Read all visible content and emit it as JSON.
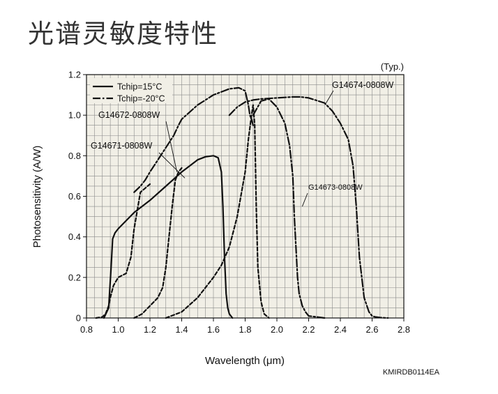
{
  "title": "光谱灵敏度特性",
  "doc_id": "KMIRDB0114EA",
  "chart_data": {
    "type": "line",
    "xlabel": "Wavelength (μm)",
    "ylabel": "Photosensitivity (A/W)",
    "note": "(Typ.)",
    "xlim": [
      0.8,
      2.8
    ],
    "ylim": [
      0,
      1.2
    ],
    "grid": true,
    "plot_background": "#f1efe6",
    "xticks": [
      "0.8",
      "1.0",
      "1.2",
      "1.4",
      "1.6",
      "1.8",
      "2.0",
      "2.2",
      "2.4",
      "2.6",
      "2.8"
    ],
    "yticks": [
      "0",
      "0.2",
      "0.4",
      "0.6",
      "0.8",
      "1.0",
      "1.2"
    ],
    "legend": {
      "position": "top-left",
      "entries": [
        {
          "label": "Tchip=15°C",
          "style": "solid"
        },
        {
          "label": "Tchip=-20°C",
          "style": "dash-dot"
        }
      ]
    },
    "series": [
      {
        "name": "G14671-0808W",
        "style": "solid",
        "x": [
          0.91,
          0.94,
          0.955,
          0.965,
          0.98,
          1.0,
          1.05,
          1.1,
          1.2,
          1.3,
          1.4,
          1.5,
          1.55,
          1.6,
          1.63,
          1.65,
          1.66,
          1.67,
          1.68,
          1.69,
          1.7,
          1.72
        ],
        "y": [
          0,
          0.05,
          0.25,
          0.39,
          0.42,
          0.44,
          0.48,
          0.52,
          0.58,
          0.65,
          0.72,
          0.78,
          0.795,
          0.8,
          0.79,
          0.72,
          0.55,
          0.3,
          0.12,
          0.05,
          0.02,
          0
        ]
      },
      {
        "name": "G14671-0808W",
        "style": "dash",
        "x": [
          0.86,
          0.9,
          0.92,
          0.94,
          0.95,
          0.97,
          1.0,
          1.05,
          1.08,
          1.1,
          1.14,
          1.2
        ],
        "y": [
          0,
          0.005,
          0.02,
          0.06,
          0.1,
          0.16,
          0.2,
          0.22,
          0.3,
          0.44,
          0.62,
          0.66
        ]
      },
      {
        "name": "G14672-0808W",
        "style": "dash-dot",
        "x": [
          1.1,
          1.14,
          1.17,
          1.2,
          1.25,
          1.3,
          1.35,
          1.38,
          1.4,
          1.5,
          1.6,
          1.7,
          1.76,
          1.8,
          1.82,
          1.83,
          1.84,
          1.85
        ],
        "y": [
          0.62,
          0.65,
          0.68,
          0.72,
          0.78,
          0.84,
          0.9,
          0.95,
          0.98,
          1.05,
          1.1,
          1.13,
          1.135,
          1.12,
          1.05,
          1.0,
          0.98,
          0.95
        ]
      },
      {
        "name": "G14672-0808W",
        "style": "dash",
        "x": [
          1.1,
          1.15,
          1.2,
          1.25,
          1.28,
          1.3,
          1.32,
          1.34,
          1.36,
          1.38,
          1.4
        ],
        "y": [
          0,
          0.02,
          0.06,
          0.1,
          0.15,
          0.25,
          0.4,
          0.55,
          0.68,
          0.72,
          0.74
        ]
      },
      {
        "name": "G14673-0808W",
        "style": "dash",
        "x": [
          1.3,
          1.4,
          1.5,
          1.6,
          1.65,
          1.7,
          1.75,
          1.8,
          1.82,
          1.84,
          1.85,
          1.86,
          1.87,
          1.88,
          1.9,
          1.92,
          1.95
        ],
        "y": [
          0,
          0.03,
          0.1,
          0.2,
          0.26,
          0.35,
          0.5,
          0.72,
          0.88,
          1.0,
          1.05,
          0.95,
          0.55,
          0.25,
          0.08,
          0.02,
          0
        ]
      },
      {
        "name": "G14673-0808W",
        "style": "dash-dot",
        "x": [
          1.85,
          1.9,
          1.95,
          2.0,
          2.05,
          2.08,
          2.1,
          2.11,
          2.12,
          2.13,
          2.14,
          2.16,
          2.18,
          2.2,
          2.25,
          2.3
        ],
        "y": [
          1.0,
          1.07,
          1.08,
          1.04,
          0.96,
          0.85,
          0.7,
          0.5,
          0.35,
          0.2,
          0.12,
          0.06,
          0.03,
          0.01,
          0.005,
          0
        ]
      },
      {
        "name": "G14674-0808W",
        "style": "dash-dot",
        "x": [
          1.7,
          1.75,
          1.8,
          1.85,
          1.9,
          2.0,
          2.1,
          2.15,
          2.2,
          2.3,
          2.35,
          2.4,
          2.45,
          2.48,
          2.5,
          2.52,
          2.55,
          2.58,
          2.6,
          2.62,
          2.65,
          2.7
        ],
        "y": [
          1.0,
          1.04,
          1.065,
          1.075,
          1.08,
          1.085,
          1.09,
          1.09,
          1.085,
          1.06,
          1.02,
          0.96,
          0.88,
          0.75,
          0.55,
          0.3,
          0.1,
          0.03,
          0.01,
          0.005,
          0.002,
          0
        ]
      }
    ],
    "annotations": [
      {
        "text": "G14671-0808W",
        "target": [
          1.42,
          0.69
        ]
      },
      {
        "text": "G14672-0808W",
        "target": [
          1.37,
          0.72
        ]
      },
      {
        "text": "G14673-0808W",
        "target": [
          2.16,
          0.55
        ]
      },
      {
        "text": "G14674-0808W",
        "target": [
          2.31,
          1.06
        ]
      }
    ]
  }
}
